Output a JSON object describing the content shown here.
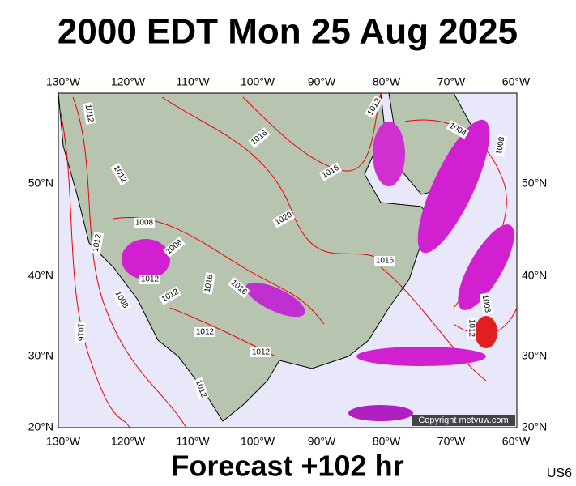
{
  "header": {
    "title": "2000 EDT Mon 25 Aug 2025"
  },
  "map": {
    "lon_labels": [
      "130°W",
      "120°W",
      "110°W",
      "100°W",
      "90°W",
      "80°W",
      "70°W",
      "60°W"
    ],
    "lat_labels": [
      "50°N",
      "40°N",
      "30°N",
      "20°N"
    ],
    "isobar_labels": [
      "1012",
      "1012",
      "1016",
      "1004",
      "1008",
      "1016",
      "1020",
      "1008",
      "1012",
      "1008",
      "1016",
      "1016",
      "1012",
      "1012",
      "1008",
      "1012",
      "1016",
      "1012",
      "1016",
      "1012",
      "1012",
      "1008",
      "1012"
    ],
    "copyright": "Copyright metvuw.com"
  },
  "footer": {
    "forecast": "Forecast +102 hr",
    "region": "US6"
  }
}
